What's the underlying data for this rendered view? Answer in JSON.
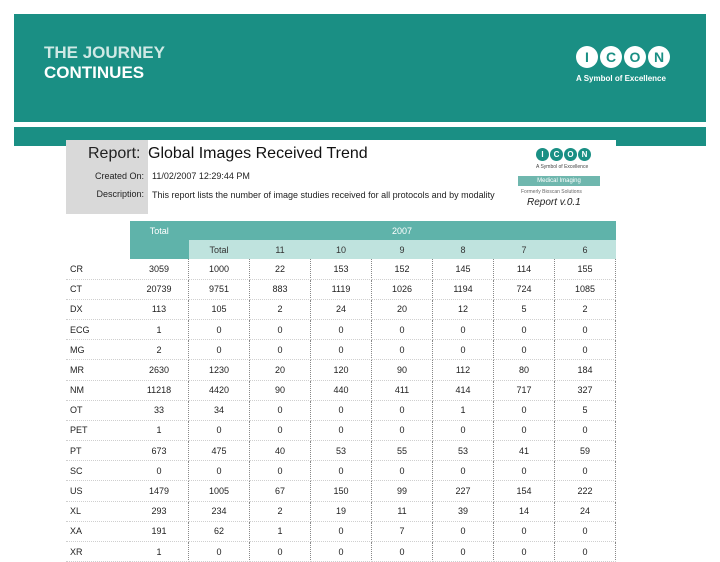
{
  "slide": {
    "heading_line1": "THE JOURNEY",
    "heading_line2": "CONTINUES",
    "logo_letters": [
      "I",
      "C",
      "O",
      "N"
    ],
    "tagline": "A Symbol of Excellence",
    "brand_color": "#1a8f84"
  },
  "report": {
    "title_label": "Report:",
    "title": "Global Images Received Trend",
    "created_label": "Created On:",
    "created_value": "11/02/2007 12:29:44 PM",
    "description_label": "Description:",
    "description_value": "This report lists the number of image studies received for all protocols and by modality",
    "logo_tagline": "A Symbol of Excellence",
    "medical_imaging": "Medical Imaging",
    "formerly": "Formerly Bioscan Solutions",
    "version": "Report v.0.1"
  },
  "table": {
    "header_total": "Total",
    "header_year": "2007",
    "subheader": [
      "Total",
      "11",
      "10",
      "9",
      "8",
      "7",
      "6"
    ],
    "rows": [
      {
        "label": "CR",
        "values": [
          "3059",
          "1000",
          "22",
          "153",
          "152",
          "145",
          "114",
          "155"
        ]
      },
      {
        "label": "CT",
        "values": [
          "20739",
          "9751",
          "883",
          "1119",
          "1026",
          "1194",
          "724",
          "1085"
        ]
      },
      {
        "label": "DX",
        "values": [
          "113",
          "105",
          "2",
          "24",
          "20",
          "12",
          "5",
          "2"
        ]
      },
      {
        "label": "ECG",
        "values": [
          "1",
          "0",
          "0",
          "0",
          "0",
          "0",
          "0",
          "0"
        ]
      },
      {
        "label": "MG",
        "values": [
          "2",
          "0",
          "0",
          "0",
          "0",
          "0",
          "0",
          "0"
        ]
      },
      {
        "label": "MR",
        "values": [
          "2630",
          "1230",
          "20",
          "120",
          "90",
          "112",
          "80",
          "184"
        ]
      },
      {
        "label": "NM",
        "values": [
          "11218",
          "4420",
          "90",
          "440",
          "411",
          "414",
          "717",
          "327"
        ]
      },
      {
        "label": "OT",
        "values": [
          "33",
          "34",
          "0",
          "0",
          "0",
          "1",
          "0",
          "5"
        ]
      },
      {
        "label": "PET",
        "values": [
          "1",
          "0",
          "0",
          "0",
          "0",
          "0",
          "0",
          "0"
        ]
      },
      {
        "label": "PT",
        "values": [
          "673",
          "475",
          "40",
          "53",
          "55",
          "53",
          "41",
          "59"
        ]
      },
      {
        "label": "SC",
        "values": [
          "0",
          "0",
          "0",
          "0",
          "0",
          "0",
          "0",
          "0"
        ]
      },
      {
        "label": "US",
        "values": [
          "1479",
          "1005",
          "67",
          "150",
          "99",
          "227",
          "154",
          "222"
        ]
      },
      {
        "label": "XL",
        "values": [
          "293",
          "234",
          "2",
          "19",
          "11",
          "39",
          "14",
          "24"
        ]
      },
      {
        "label": "XA",
        "values": [
          "191",
          "62",
          "1",
          "0",
          "7",
          "0",
          "0",
          "0"
        ]
      },
      {
        "label": "XR",
        "values": [
          "1",
          "0",
          "0",
          "0",
          "0",
          "0",
          "0",
          "0"
        ]
      }
    ]
  }
}
